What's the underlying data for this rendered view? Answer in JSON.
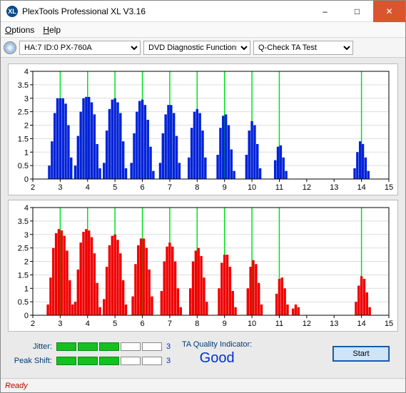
{
  "window": {
    "title": "PlexTools Professional XL V3.16",
    "logo_text": "XL",
    "logo_bg": "#0a4b8c"
  },
  "menu": {
    "options": "Options",
    "help": "Help"
  },
  "toolbar": {
    "drive": "HA:7 ID:0   PX-760A",
    "category": "DVD Diagnostic Functions",
    "test": "Q-Check TA Test"
  },
  "chart_top": {
    "type": "bar",
    "color": "#0022d8",
    "bg": "#ffffff",
    "grid_color": "#dddddd",
    "vline_color": "#00e020",
    "ylim": [
      0,
      4
    ],
    "ytick_step": 0.5,
    "xlim": [
      2,
      15
    ],
    "xtick_step": 1,
    "vlines": [
      3,
      4,
      5,
      6,
      7,
      8,
      9,
      10,
      11,
      14
    ],
    "bars": [
      [
        2.6,
        0.5
      ],
      [
        2.7,
        1.4
      ],
      [
        2.8,
        2.45
      ],
      [
        2.9,
        3.0
      ],
      [
        3.0,
        3.0
      ],
      [
        3.1,
        3.0
      ],
      [
        3.2,
        2.8
      ],
      [
        3.3,
        2.0
      ],
      [
        3.4,
        0.8
      ],
      [
        3.55,
        0.5
      ],
      [
        3.65,
        1.6
      ],
      [
        3.75,
        2.5
      ],
      [
        3.85,
        3.0
      ],
      [
        3.95,
        3.05
      ],
      [
        4.05,
        3.05
      ],
      [
        4.15,
        2.85
      ],
      [
        4.25,
        2.4
      ],
      [
        4.35,
        1.3
      ],
      [
        4.45,
        0.4
      ],
      [
        4.6,
        0.6
      ],
      [
        4.7,
        1.8
      ],
      [
        4.8,
        2.6
      ],
      [
        4.9,
        2.95
      ],
      [
        5.0,
        3.0
      ],
      [
        5.1,
        2.85
      ],
      [
        5.2,
        2.45
      ],
      [
        5.3,
        1.4
      ],
      [
        5.4,
        0.4
      ],
      [
        5.6,
        0.6
      ],
      [
        5.7,
        1.7
      ],
      [
        5.8,
        2.5
      ],
      [
        5.9,
        2.9
      ],
      [
        6.0,
        2.95
      ],
      [
        6.1,
        2.75
      ],
      [
        6.2,
        2.2
      ],
      [
        6.3,
        1.2
      ],
      [
        6.4,
        0.3
      ],
      [
        6.65,
        0.6
      ],
      [
        6.75,
        1.7
      ],
      [
        6.85,
        2.4
      ],
      [
        6.95,
        2.75
      ],
      [
        7.05,
        2.75
      ],
      [
        7.15,
        2.45
      ],
      [
        7.25,
        1.6
      ],
      [
        7.35,
        0.6
      ],
      [
        7.7,
        0.8
      ],
      [
        7.8,
        1.9
      ],
      [
        7.9,
        2.5
      ],
      [
        8.0,
        2.6
      ],
      [
        8.1,
        2.45
      ],
      [
        8.2,
        1.8
      ],
      [
        8.3,
        0.8
      ],
      [
        8.75,
        0.9
      ],
      [
        8.85,
        1.9
      ],
      [
        8.95,
        2.35
      ],
      [
        9.05,
        2.4
      ],
      [
        9.15,
        2.0
      ],
      [
        9.25,
        1.1
      ],
      [
        9.35,
        0.3
      ],
      [
        9.8,
        0.9
      ],
      [
        9.9,
        1.8
      ],
      [
        10.0,
        2.15
      ],
      [
        10.1,
        2.0
      ],
      [
        10.2,
        1.3
      ],
      [
        10.3,
        0.4
      ],
      [
        10.85,
        0.7
      ],
      [
        10.95,
        1.2
      ],
      [
        11.05,
        1.25
      ],
      [
        11.15,
        0.8
      ],
      [
        11.25,
        0.3
      ],
      [
        13.75,
        0.4
      ],
      [
        13.85,
        1.0
      ],
      [
        13.95,
        1.4
      ],
      [
        14.05,
        1.3
      ],
      [
        14.15,
        0.8
      ],
      [
        14.25,
        0.3
      ]
    ]
  },
  "chart_bottom": {
    "type": "bar",
    "color": "#f00000",
    "bg": "#ffffff",
    "grid_color": "#dddddd",
    "vline_color": "#00e020",
    "ylim": [
      0,
      4
    ],
    "ytick_step": 0.5,
    "xlim": [
      2,
      15
    ],
    "xtick_step": 1,
    "vlines": [
      3,
      4,
      5,
      6,
      7,
      8,
      9,
      10,
      11,
      14
    ],
    "bars": [
      [
        2.55,
        0.4
      ],
      [
        2.65,
        1.4
      ],
      [
        2.75,
        2.5
      ],
      [
        2.85,
        3.05
      ],
      [
        2.95,
        3.2
      ],
      [
        3.05,
        3.15
      ],
      [
        3.15,
        2.95
      ],
      [
        3.25,
        2.4
      ],
      [
        3.35,
        1.3
      ],
      [
        3.45,
        0.4
      ],
      [
        3.55,
        0.5
      ],
      [
        3.65,
        1.7
      ],
      [
        3.75,
        2.7
      ],
      [
        3.85,
        3.1
      ],
      [
        3.95,
        3.2
      ],
      [
        4.05,
        3.15
      ],
      [
        4.15,
        2.9
      ],
      [
        4.25,
        2.3
      ],
      [
        4.35,
        1.2
      ],
      [
        4.45,
        0.3
      ],
      [
        4.6,
        0.6
      ],
      [
        4.7,
        1.8
      ],
      [
        4.8,
        2.6
      ],
      [
        4.9,
        2.95
      ],
      [
        5.0,
        3.0
      ],
      [
        5.1,
        2.8
      ],
      [
        5.2,
        2.3
      ],
      [
        5.3,
        1.3
      ],
      [
        5.4,
        0.4
      ],
      [
        5.65,
        0.7
      ],
      [
        5.75,
        1.9
      ],
      [
        5.85,
        2.6
      ],
      [
        5.95,
        2.85
      ],
      [
        6.05,
        2.85
      ],
      [
        6.15,
        2.5
      ],
      [
        6.25,
        1.7
      ],
      [
        6.35,
        0.7
      ],
      [
        6.7,
        0.9
      ],
      [
        6.8,
        2.0
      ],
      [
        6.9,
        2.55
      ],
      [
        7.0,
        2.7
      ],
      [
        7.1,
        2.55
      ],
      [
        7.2,
        2.0
      ],
      [
        7.3,
        1.0
      ],
      [
        7.4,
        0.3
      ],
      [
        7.75,
        1.0
      ],
      [
        7.85,
        2.0
      ],
      [
        7.95,
        2.4
      ],
      [
        8.05,
        2.5
      ],
      [
        8.15,
        2.2
      ],
      [
        8.25,
        1.4
      ],
      [
        8.35,
        0.5
      ],
      [
        8.8,
        1.0
      ],
      [
        8.9,
        1.95
      ],
      [
        9.0,
        2.25
      ],
      [
        9.1,
        2.25
      ],
      [
        9.2,
        1.8
      ],
      [
        9.3,
        0.9
      ],
      [
        9.4,
        0.3
      ],
      [
        9.85,
        1.0
      ],
      [
        9.95,
        1.8
      ],
      [
        10.05,
        2.05
      ],
      [
        10.15,
        1.9
      ],
      [
        10.25,
        1.2
      ],
      [
        10.35,
        0.4
      ],
      [
        10.9,
        0.8
      ],
      [
        11.0,
        1.35
      ],
      [
        11.1,
        1.4
      ],
      [
        11.2,
        1.0
      ],
      [
        11.3,
        0.4
      ],
      [
        11.5,
        0.25
      ],
      [
        11.6,
        0.4
      ],
      [
        11.7,
        0.3
      ],
      [
        13.8,
        0.5
      ],
      [
        13.9,
        1.1
      ],
      [
        14.0,
        1.45
      ],
      [
        14.1,
        1.35
      ],
      [
        14.2,
        0.85
      ],
      [
        14.3,
        0.3
      ]
    ]
  },
  "meters": {
    "jitter": {
      "label": "Jitter:",
      "filled": 3,
      "total": 5,
      "value": "3"
    },
    "peakshift": {
      "label": "Peak Shift:",
      "filled": 3,
      "total": 5,
      "value": "3"
    },
    "seg_on": "#15c020",
    "seg_off": "#ffffff"
  },
  "ta": {
    "label": "TA Quality Indicator:",
    "value": "Good",
    "value_color": "#0030d0"
  },
  "buttons": {
    "start": "Start"
  },
  "status": {
    "text": "Ready"
  }
}
